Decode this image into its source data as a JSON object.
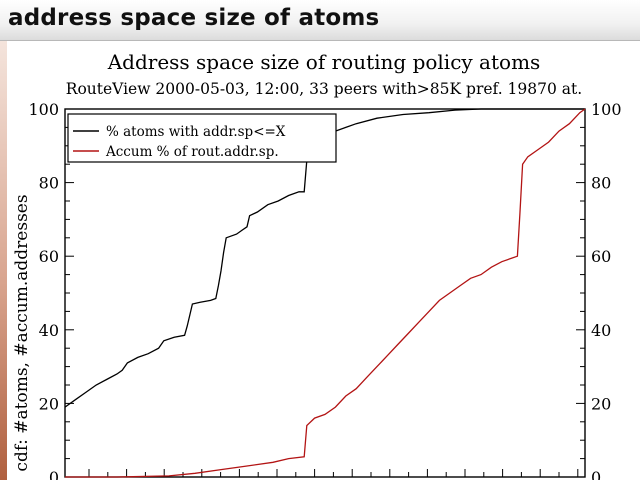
{
  "slide": {
    "title": "address space size of atoms"
  },
  "colors": {
    "series1": "#000000",
    "series2": "#b31414",
    "header_bg": "#e8e8e8",
    "side_bar": "#b0603f"
  },
  "chart_data": {
    "type": "line",
    "title": "Address space size of routing policy atoms",
    "subtitle": "RouteView 2000-05-03, 12:00, 33 peers with>85K pref. 19870 at.",
    "xlabel": "",
    "ylabel": "cdf: #atoms, #accum.addresses",
    "ylim": [
      0,
      100
    ],
    "xlim": [
      0,
      1
    ],
    "yticks": [
      0,
      20,
      40,
      60,
      80,
      100
    ],
    "right_yticks": [
      0,
      20,
      40,
      60,
      80,
      100
    ],
    "legend_position": "top-left",
    "grid": false,
    "series": [
      {
        "name": "% atoms with addr.sp<=X",
        "color": "#000000",
        "points": [
          [
            0.0,
            19
          ],
          [
            0.02,
            21
          ],
          [
            0.04,
            23
          ],
          [
            0.06,
            25
          ],
          [
            0.08,
            26.5
          ],
          [
            0.1,
            28
          ],
          [
            0.11,
            29
          ],
          [
            0.12,
            31
          ],
          [
            0.14,
            32.5
          ],
          [
            0.16,
            33.5
          ],
          [
            0.18,
            35
          ],
          [
            0.19,
            37
          ],
          [
            0.21,
            38
          ],
          [
            0.23,
            38.5
          ],
          [
            0.235,
            41
          ],
          [
            0.24,
            44
          ],
          [
            0.245,
            47
          ],
          [
            0.26,
            47.5
          ],
          [
            0.28,
            48
          ],
          [
            0.29,
            48.5
          ],
          [
            0.295,
            52
          ],
          [
            0.3,
            56
          ],
          [
            0.305,
            61
          ],
          [
            0.31,
            65
          ],
          [
            0.33,
            66
          ],
          [
            0.34,
            67
          ],
          [
            0.35,
            68
          ],
          [
            0.355,
            71
          ],
          [
            0.37,
            72
          ],
          [
            0.39,
            74
          ],
          [
            0.41,
            75
          ],
          [
            0.43,
            76.5
          ],
          [
            0.45,
            77.5
          ],
          [
            0.46,
            77.5
          ],
          [
            0.465,
            86
          ],
          [
            0.47,
            90
          ],
          [
            0.48,
            91
          ],
          [
            0.5,
            93
          ],
          [
            0.52,
            94
          ],
          [
            0.54,
            95
          ],
          [
            0.56,
            96
          ],
          [
            0.6,
            97.5
          ],
          [
            0.65,
            98.5
          ],
          [
            0.7,
            99
          ],
          [
            0.75,
            99.7
          ],
          [
            0.8,
            100
          ],
          [
            1.0,
            100
          ]
        ]
      },
      {
        "name": "Accum % of rout.addr.sp.",
        "color": "#b31414",
        "points": [
          [
            0.0,
            0
          ],
          [
            0.1,
            0
          ],
          [
            0.2,
            0.3
          ],
          [
            0.25,
            1
          ],
          [
            0.3,
            2
          ],
          [
            0.35,
            3
          ],
          [
            0.4,
            4
          ],
          [
            0.43,
            5
          ],
          [
            0.46,
            5.5
          ],
          [
            0.465,
            14
          ],
          [
            0.48,
            16
          ],
          [
            0.5,
            17
          ],
          [
            0.52,
            19
          ],
          [
            0.54,
            22
          ],
          [
            0.56,
            24
          ],
          [
            0.58,
            27
          ],
          [
            0.6,
            30
          ],
          [
            0.62,
            33
          ],
          [
            0.64,
            36
          ],
          [
            0.66,
            39
          ],
          [
            0.68,
            42
          ],
          [
            0.7,
            45
          ],
          [
            0.72,
            48
          ],
          [
            0.74,
            50
          ],
          [
            0.76,
            52
          ],
          [
            0.78,
            54
          ],
          [
            0.8,
            55
          ],
          [
            0.82,
            57
          ],
          [
            0.84,
            58.5
          ],
          [
            0.86,
            59.5
          ],
          [
            0.87,
            60
          ],
          [
            0.875,
            72
          ],
          [
            0.88,
            85
          ],
          [
            0.89,
            87
          ],
          [
            0.91,
            89
          ],
          [
            0.93,
            91
          ],
          [
            0.95,
            94
          ],
          [
            0.97,
            96
          ],
          [
            0.99,
            99
          ],
          [
            1.0,
            100
          ]
        ]
      }
    ]
  }
}
